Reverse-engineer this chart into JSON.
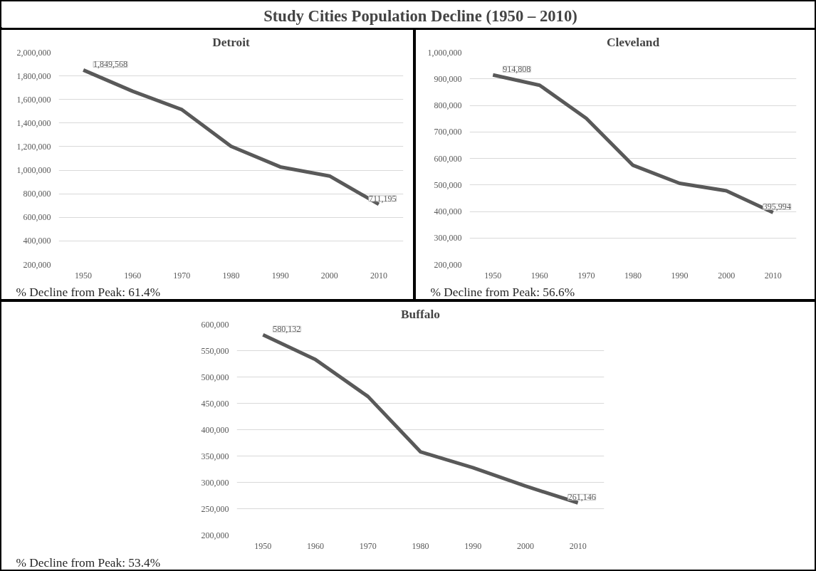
{
  "chart_data": [
    {
      "type": "other",
      "title": "Study Cities Population Decline (1950 – 2010)"
    },
    {
      "type": "line",
      "title": "Detroit",
      "categories": [
        "1950",
        "1960",
        "1970",
        "1980",
        "1990",
        "2000",
        "2010"
      ],
      "series": [
        {
          "color": "#595959",
          "values": [
            1849568,
            1670000,
            1514000,
            1203000,
            1028000,
            951000,
            711195
          ],
          "value_labels": [
            "1,849,568",
            null,
            null,
            null,
            null,
            null,
            "711,195"
          ]
        }
      ],
      "ylim": [
        200000,
        2000000
      ],
      "yticks": [
        {
          "value": 200000,
          "label": "200,000"
        },
        {
          "value": 400000,
          "label": "400,000"
        },
        {
          "value": 600000,
          "label": "600,000"
        },
        {
          "value": 800000,
          "label": "800,000"
        },
        {
          "value": 1000000,
          "label": "1,000,000"
        },
        {
          "value": 1200000,
          "label": "1,200,000"
        },
        {
          "value": 1400000,
          "label": "1,400,000"
        },
        {
          "value": 1600000,
          "label": "1,600,000"
        },
        {
          "value": 1800000,
          "label": "1,800,000"
        },
        {
          "value": 2000000,
          "label": "2,000,000"
        }
      ],
      "grid": "y",
      "annotations": [
        "% Decline from Peak: 61.4%"
      ]
    },
    {
      "type": "line",
      "title": "Cleveland",
      "categories": [
        "1950",
        "1960",
        "1970",
        "1980",
        "1990",
        "2000",
        "2010"
      ],
      "series": [
        {
          "color": "#595959",
          "values": [
            914808,
            876000,
            751000,
            574000,
            506000,
            478000,
            395994
          ],
          "value_labels": [
            "914,808",
            null,
            null,
            null,
            null,
            null,
            "395,994"
          ]
        }
      ],
      "ylim": [
        200000,
        1000000
      ],
      "yticks": [
        {
          "value": 200000,
          "label": "200,000"
        },
        {
          "value": 300000,
          "label": "300,000"
        },
        {
          "value": 400000,
          "label": "400,000"
        },
        {
          "value": 500000,
          "label": "500,000"
        },
        {
          "value": 600000,
          "label": "600,000"
        },
        {
          "value": 700000,
          "label": "700,000"
        },
        {
          "value": 800000,
          "label": "800,000"
        },
        {
          "value": 900000,
          "label": "900,000"
        },
        {
          "value": 1000000,
          "label": "1,000,000"
        }
      ],
      "grid": "y",
      "annotations": [
        "% Decline from Peak: 56.6%"
      ]
    },
    {
      "type": "line",
      "title": "Buffalo",
      "categories": [
        "1950",
        "1960",
        "1970",
        "1980",
        "1990",
        "2000",
        "2010"
      ],
      "series": [
        {
          "color": "#595959",
          "values": [
            580132,
            533000,
            463000,
            358000,
            328000,
            293000,
            261146
          ],
          "value_labels": [
            "580,132",
            null,
            null,
            null,
            null,
            null,
            "261,146"
          ]
        }
      ],
      "ylim": [
        200000,
        600000
      ],
      "yticks": [
        {
          "value": 200000,
          "label": "200,000"
        },
        {
          "value": 250000,
          "label": "250,000"
        },
        {
          "value": 300000,
          "label": "300,000"
        },
        {
          "value": 350000,
          "label": "350,000"
        },
        {
          "value": 400000,
          "label": "400,000"
        },
        {
          "value": 450000,
          "label": "450,000"
        },
        {
          "value": 500000,
          "label": "500,000"
        },
        {
          "value": 550000,
          "label": "550,000"
        },
        {
          "value": 600000,
          "label": "600,000"
        }
      ],
      "grid": "y",
      "annotations": [
        "% Decline from Peak: 53.4%"
      ]
    }
  ]
}
